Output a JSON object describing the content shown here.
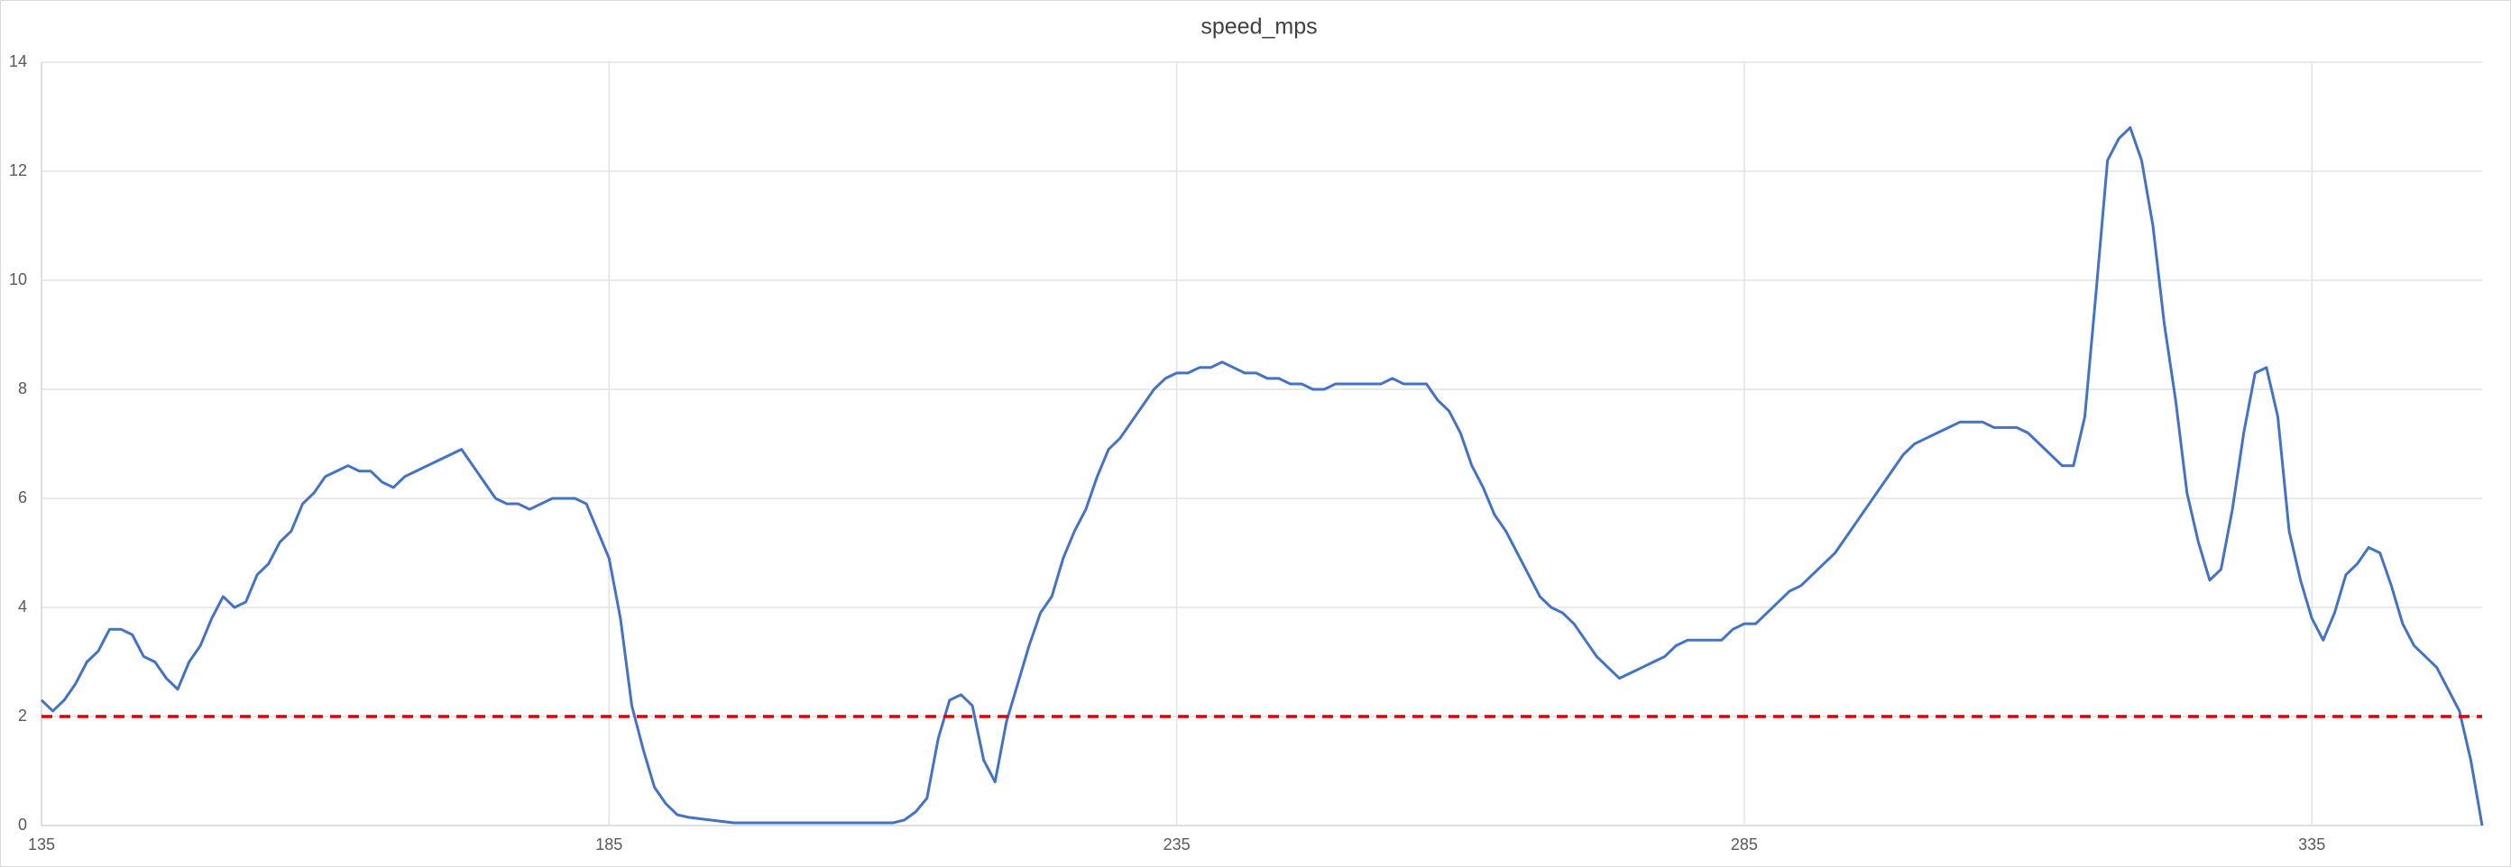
{
  "chart_data": {
    "type": "line",
    "title": "speed_mps",
    "x": [
      135,
      136,
      137,
      138,
      139,
      140,
      141,
      142,
      143,
      144,
      145,
      146,
      147,
      148,
      149,
      150,
      151,
      152,
      153,
      154,
      155,
      156,
      157,
      158,
      159,
      160,
      161,
      162,
      163,
      164,
      165,
      166,
      167,
      168,
      169,
      170,
      171,
      172,
      173,
      174,
      175,
      176,
      177,
      178,
      179,
      180,
      181,
      182,
      183,
      184,
      185,
      186,
      187,
      188,
      189,
      190,
      191,
      192,
      194,
      196,
      198,
      200,
      202,
      204,
      206,
      208,
      210,
      211,
      212,
      213,
      214,
      215,
      216,
      217,
      218,
      219,
      220,
      221,
      222,
      223,
      224,
      225,
      226,
      227,
      228,
      229,
      230,
      231,
      232,
      233,
      234,
      235,
      236,
      237,
      238,
      239,
      240,
      241,
      242,
      243,
      244,
      245,
      246,
      247,
      248,
      249,
      250,
      251,
      252,
      253,
      254,
      255,
      256,
      257,
      258,
      259,
      260,
      261,
      262,
      263,
      264,
      265,
      266,
      267,
      268,
      269,
      270,
      271,
      272,
      273,
      274,
      275,
      276,
      277,
      278,
      279,
      280,
      281,
      282,
      283,
      284,
      285,
      286,
      287,
      288,
      289,
      290,
      291,
      292,
      293,
      294,
      295,
      296,
      297,
      298,
      299,
      300,
      301,
      302,
      303,
      304,
      305,
      306,
      307,
      308,
      309,
      310,
      311,
      312,
      313,
      314,
      315,
      316,
      317,
      318,
      319,
      320,
      321,
      322,
      323,
      324,
      325,
      326,
      327,
      328,
      329,
      330,
      331,
      332,
      333,
      334,
      335,
      336,
      337,
      338,
      339,
      340,
      341,
      342,
      343,
      344,
      345,
      346,
      347,
      348,
      349,
      350
    ],
    "series": [
      {
        "name": "speed_mps",
        "color": "#4472c4",
        "values": [
          2.3,
          2.1,
          2.3,
          2.6,
          3.0,
          3.2,
          3.6,
          3.6,
          3.5,
          3.1,
          3.0,
          2.7,
          2.5,
          3.0,
          3.3,
          3.8,
          4.2,
          4.0,
          4.1,
          4.6,
          4.8,
          5.2,
          5.4,
          5.9,
          6.1,
          6.4,
          6.5,
          6.6,
          6.5,
          6.5,
          6.3,
          6.2,
          6.4,
          6.5,
          6.6,
          6.7,
          6.8,
          6.9,
          6.6,
          6.3,
          6.0,
          5.9,
          5.9,
          5.8,
          5.9,
          6.0,
          6.0,
          6.0,
          5.9,
          5.4,
          4.9,
          3.8,
          2.2,
          1.4,
          0.7,
          0.4,
          0.2,
          0.15,
          0.1,
          0.05,
          0.05,
          0.05,
          0.05,
          0.05,
          0.05,
          0.05,
          0.05,
          0.1,
          0.25,
          0.5,
          1.6,
          2.3,
          2.4,
          2.2,
          1.2,
          0.8,
          1.9,
          2.6,
          3.3,
          3.9,
          4.2,
          4.9,
          5.4,
          5.8,
          6.4,
          6.9,
          7.1,
          7.4,
          7.7,
          8.0,
          8.2,
          8.3,
          8.3,
          8.4,
          8.4,
          8.5,
          8.4,
          8.3,
          8.3,
          8.2,
          8.2,
          8.1,
          8.1,
          8.0,
          8.0,
          8.1,
          8.1,
          8.1,
          8.1,
          8.1,
          8.2,
          8.1,
          8.1,
          8.1,
          7.8,
          7.6,
          7.2,
          6.6,
          6.2,
          5.7,
          5.4,
          5.0,
          4.6,
          4.2,
          4.0,
          3.9,
          3.7,
          3.4,
          3.1,
          2.9,
          2.7,
          2.8,
          2.9,
          3.0,
          3.1,
          3.3,
          3.4,
          3.4,
          3.4,
          3.4,
          3.6,
          3.7,
          3.7,
          3.9,
          4.1,
          4.3,
          4.4,
          4.6,
          4.8,
          5.0,
          5.3,
          5.6,
          5.9,
          6.2,
          6.5,
          6.8,
          7.0,
          7.1,
          7.2,
          7.3,
          7.4,
          7.4,
          7.4,
          7.3,
          7.3,
          7.3,
          7.2,
          7.0,
          6.8,
          6.6,
          6.6,
          7.5,
          9.8,
          12.2,
          12.6,
          12.8,
          12.2,
          11.0,
          9.2,
          7.8,
          6.1,
          5.2,
          4.5,
          4.7,
          5.8,
          7.2,
          8.3,
          8.4,
          7.5,
          5.4,
          4.5,
          3.8,
          3.4,
          3.9,
          4.6,
          4.8,
          5.1,
          5.0,
          4.4,
          3.7,
          3.3,
          3.1,
          2.9,
          2.5,
          2.1,
          1.2,
          0.0
        ]
      }
    ],
    "reference_line": {
      "value": 2,
      "color": "#e00000"
    },
    "xlim": [
      135,
      350
    ],
    "xticks": [
      135,
      185,
      235,
      285,
      335
    ],
    "ylim": [
      0,
      14
    ],
    "yticks": [
      0,
      2,
      4,
      6,
      8,
      10,
      12,
      14
    ],
    "grid": true
  }
}
